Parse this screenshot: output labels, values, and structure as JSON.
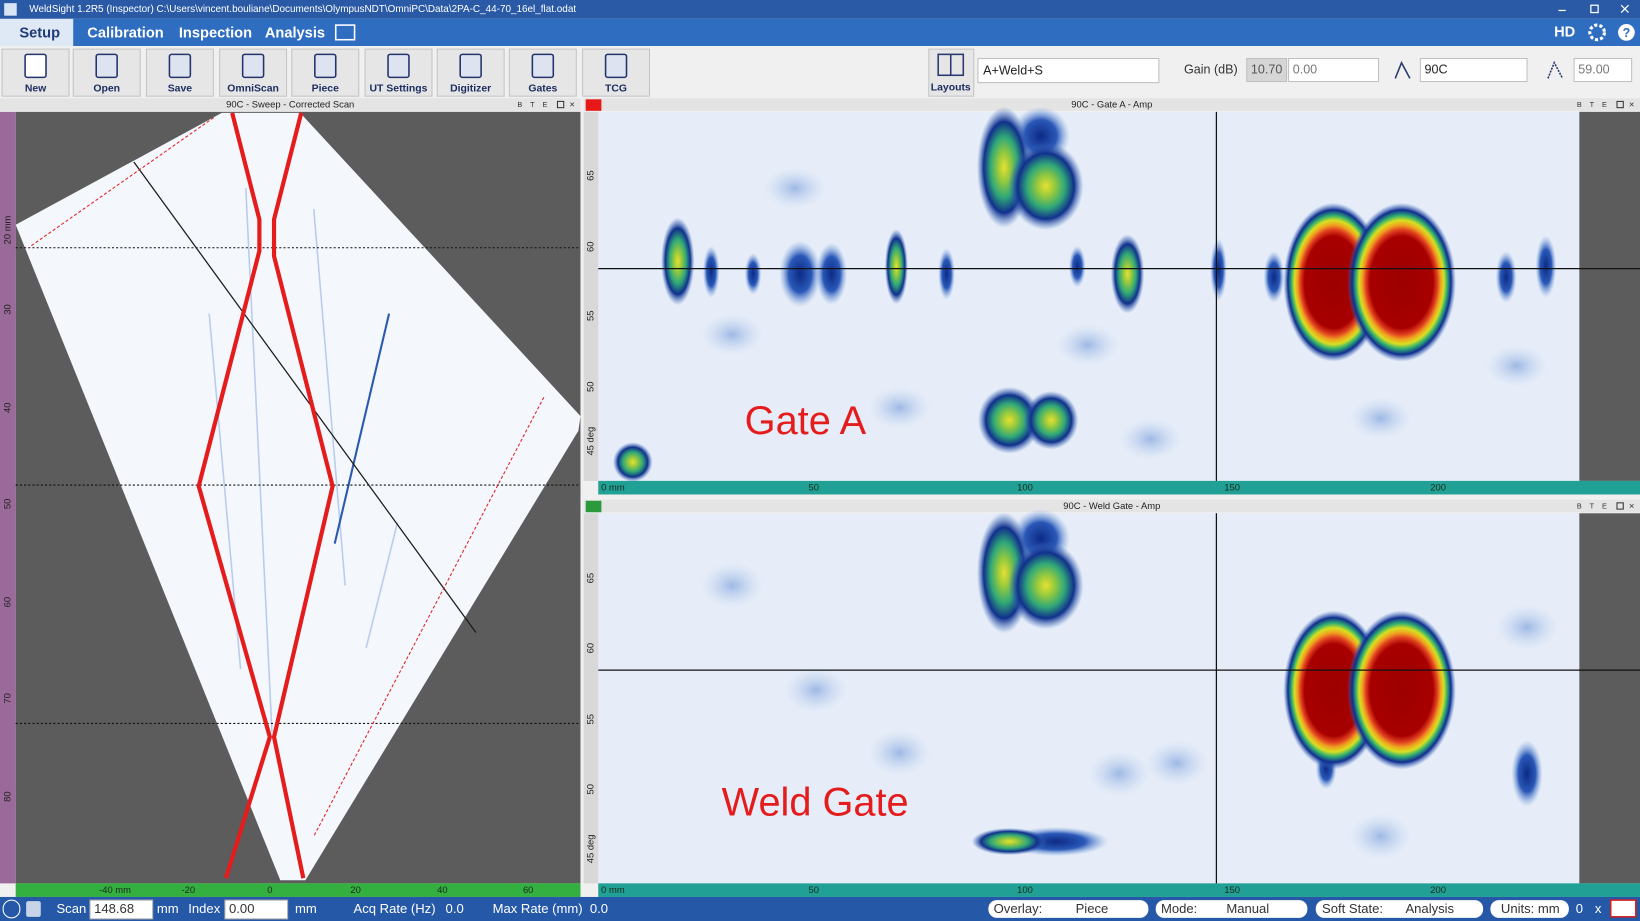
{
  "title_bar": {
    "title": "WeldSight 1.2R5 (Inspector) C:\\Users\\vincent.bouliane\\Documents\\OlympusNDT\\OmniPC\\Data\\2PA-C_44-70_16el_flat.odat"
  },
  "menu": {
    "tabs": [
      "Setup",
      "Calibration",
      "Inspection",
      "Analysis"
    ],
    "hd": "HD"
  },
  "toolbar": {
    "buttons": [
      "New",
      "Open",
      "Save",
      "OmniScan",
      "Piece",
      "UT Settings",
      "Digitizer",
      "Gates",
      "TCG"
    ],
    "layouts": "Layouts",
    "layout_combo": "A+Weld+S",
    "gain_label": "Gain (dB)",
    "gain_value": "10.70",
    "gain_offset": "0.00",
    "group_combo": "90C",
    "angle_value": "59.00"
  },
  "panel_controls": [
    "B",
    "T",
    "E"
  ],
  "panels": [
    {
      "title": "90C - Sweep - Corrected Scan",
      "y_ticks": [
        "20 mm",
        "30",
        "40",
        "50",
        "60",
        "70",
        "80"
      ],
      "x_ticks": [
        "-40 mm",
        "-20",
        "0",
        "20",
        "40",
        "60"
      ]
    },
    {
      "title": "90C - Gate A - Amp",
      "y_ticks": [
        "65",
        "60",
        "55",
        "50",
        "45 deg"
      ],
      "x_ticks": [
        "0 mm",
        "50",
        "100",
        "150",
        "200"
      ],
      "overlay": "Gate A"
    },
    {
      "title": "90C - Weld Gate - Amp",
      "y_ticks": [
        "65",
        "60",
        "55",
        "50",
        "45 deg"
      ],
      "x_ticks": [
        "0 mm",
        "50",
        "100",
        "150",
        "200"
      ],
      "overlay": "Weld Gate"
    }
  ],
  "status_bar": {
    "scan_label": "Scan",
    "scan_value": "148.68",
    "scan_unit": "mm",
    "index_label": "Index",
    "index_value": "0.00",
    "index_unit": "mm",
    "acq_rate_label": "Acq Rate (Hz)",
    "acq_rate_value": "0.0",
    "max_rate_label": "Max Rate (mm)",
    "max_rate_value": "0.0",
    "overlay_label": "Overlay:",
    "overlay_value": "Piece",
    "mode_label": "Mode:",
    "mode_value": "Manual",
    "soft_state_label": "Soft State:",
    "soft_state_value": "Analysis",
    "units": "Units:  mm",
    "count": "0",
    "close": "x"
  }
}
